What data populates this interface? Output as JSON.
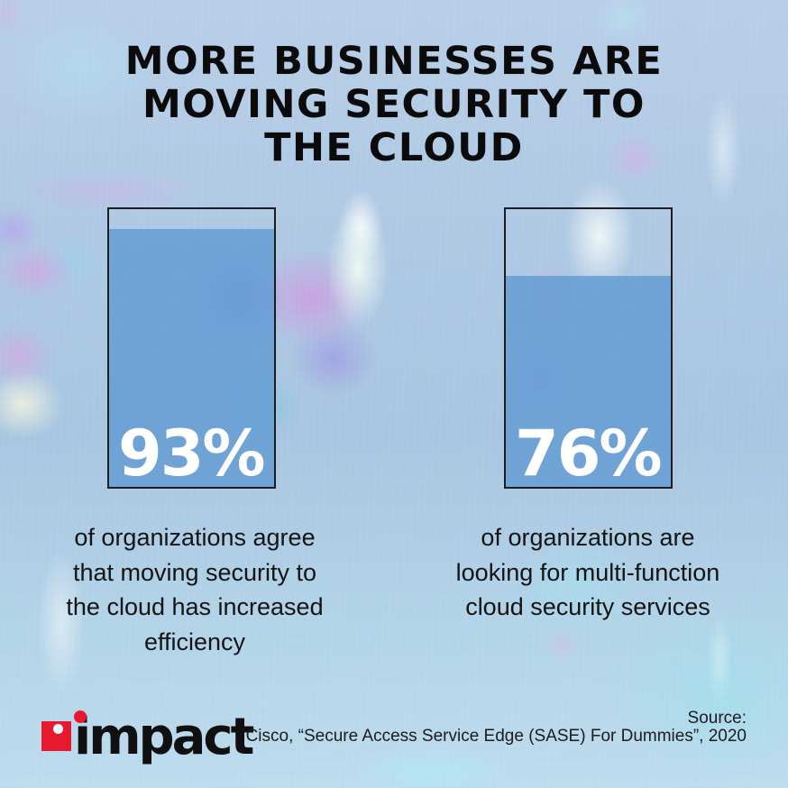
{
  "title": {
    "lines": [
      "MORE BUSINESSES ARE",
      "MOVING SECURITY TO",
      "THE CLOUD"
    ]
  },
  "chart_data": {
    "type": "bar",
    "title": "MORE BUSINESSES ARE MOVING SECURITY TO THE CLOUD",
    "unit": "percent",
    "ylim": [
      0,
      100
    ],
    "bars": [
      {
        "value": 93,
        "label": "93%",
        "caption": "of organizations agree that moving security to the cloud has increased efficiency"
      },
      {
        "value": 76,
        "label": "76%",
        "caption": "of organizations are looking for multi-function cloud security services"
      }
    ],
    "bar_fill_color": "#629bd3",
    "bar_border_color": "#1d1d1f",
    "value_label_color": "#ffffff",
    "legend": "none",
    "grid": "off"
  },
  "captions": {
    "first": [
      "of organizations agree",
      "that moving security to",
      "the cloud has increased",
      "efficiency"
    ],
    "second": [
      "of organizations are",
      "looking for multi-function",
      "cloud security services"
    ]
  },
  "footer": {
    "logo_text": "impact",
    "logo_accent_color": "#e8192e",
    "source_lines": [
      "Source:",
      "Cisco, “Secure Access Service Edge (SASE) For Dummies”, 2020"
    ]
  },
  "colors": {
    "background_base": "#aec9e3",
    "title_color": "#0b0b0b",
    "body_text_color": "#141414"
  }
}
